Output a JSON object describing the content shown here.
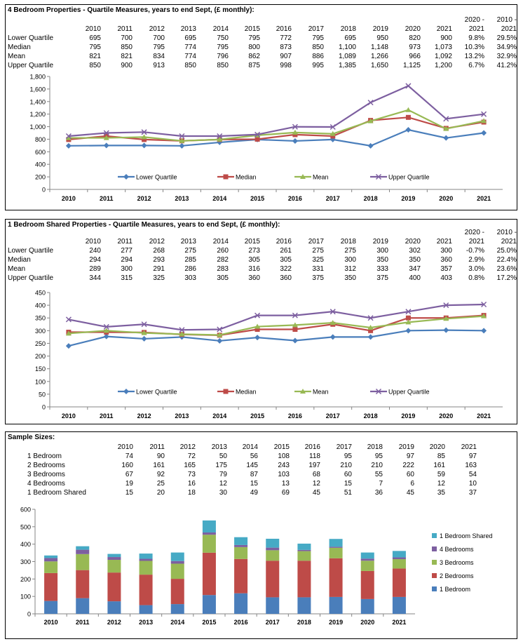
{
  "panels": [
    {
      "title": "4 Bedroom Properties - Quartile Measures, years to end Sept, (£ monthly):",
      "header_top": [
        "2020 -",
        "2010 -"
      ],
      "columns": [
        "2010",
        "2011",
        "2012",
        "2013",
        "2014",
        "2015",
        "2016",
        "2017",
        "2018",
        "2019",
        "2020",
        "2021",
        "2021",
        "2021"
      ],
      "rows": [
        {
          "label": "Lower Quartile",
          "cells": [
            "695",
            "700",
            "700",
            "695",
            "750",
            "795",
            "772",
            "795",
            "695",
            "950",
            "820",
            "900",
            "9.8%",
            "29.5%"
          ]
        },
        {
          "label": "Median",
          "cells": [
            "795",
            "850",
            "795",
            "774",
            "795",
            "800",
            "873",
            "850",
            "1,100",
            "1,148",
            "973",
            "1,073",
            "10.3%",
            "34.9%"
          ]
        },
        {
          "label": "Mean",
          "cells": [
            "821",
            "821",
            "834",
            "774",
            "796",
            "862",
            "907",
            "886",
            "1,089",
            "1,266",
            "966",
            "1,092",
            "13.2%",
            "32.9%"
          ]
        },
        {
          "label": "Upper Quartile",
          "cells": [
            "850",
            "900",
            "913",
            "850",
            "850",
            "875",
            "998",
            "995",
            "1,385",
            "1,650",
            "1,125",
            "1,200",
            "6.7%",
            "41.2%"
          ]
        }
      ]
    },
    {
      "title": "1 Bedroom Shared Properties - Quartile Measures, years to end Sept, (£ monthly):",
      "header_top": [
        "2020 -",
        "2010 -"
      ],
      "columns": [
        "2010",
        "2011",
        "2012",
        "2013",
        "2014",
        "2015",
        "2016",
        "2017",
        "2018",
        "2019",
        "2020",
        "2021",
        "2021",
        "2021"
      ],
      "rows": [
        {
          "label": "Lower Quartile",
          "cells": [
            "240",
            "277",
            "268",
            "275",
            "260",
            "273",
            "261",
            "275",
            "275",
            "300",
            "302",
            "300",
            "-0.7%",
            "25.0%"
          ]
        },
        {
          "label": "Median",
          "cells": [
            "294",
            "294",
            "293",
            "285",
            "282",
            "305",
            "305",
            "325",
            "300",
            "350",
            "350",
            "360",
            "2.9%",
            "22.4%"
          ]
        },
        {
          "label": "Mean",
          "cells": [
            "289",
            "300",
            "291",
            "286",
            "283",
            "316",
            "322",
            "331",
            "312",
            "333",
            "347",
            "357",
            "3.0%",
            "23.6%"
          ]
        },
        {
          "label": "Upper Quartile",
          "cells": [
            "344",
            "315",
            "325",
            "303",
            "305",
            "360",
            "360",
            "375",
            "350",
            "375",
            "400",
            "403",
            "0.8%",
            "17.2%"
          ]
        }
      ]
    },
    {
      "title": "Sample Sizes:",
      "columns": [
        "2010",
        "2011",
        "2012",
        "2013",
        "2014",
        "2015",
        "2016",
        "2017",
        "2018",
        "2019",
        "2020",
        "2021"
      ],
      "rows": [
        {
          "label": "1 Bedroom",
          "cells": [
            "74",
            "90",
            "72",
            "50",
            "56",
            "108",
            "118",
            "95",
            "95",
            "97",
            "85",
            "97"
          ]
        },
        {
          "label": "2 Bedrooms",
          "cells": [
            "160",
            "161",
            "165",
            "175",
            "145",
            "243",
            "197",
            "210",
            "210",
            "222",
            "161",
            "163"
          ]
        },
        {
          "label": "3 Bedrooms",
          "cells": [
            "67",
            "92",
            "73",
            "79",
            "87",
            "103",
            "68",
            "60",
            "55",
            "60",
            "59",
            "54"
          ]
        },
        {
          "label": "4 Bedrooms",
          "cells": [
            "19",
            "25",
            "16",
            "12",
            "15",
            "13",
            "12",
            "15",
            "7",
            "6",
            "12",
            "10"
          ]
        },
        {
          "label": "1 Bedroom Shared",
          "cells": [
            "15",
            "20",
            "18",
            "30",
            "49",
            "69",
            "45",
            "51",
            "36",
            "45",
            "35",
            "37"
          ]
        }
      ]
    }
  ],
  "chart_data": [
    {
      "type": "line",
      "categories": [
        "2010",
        "2011",
        "2012",
        "2013",
        "2014",
        "2015",
        "2016",
        "2017",
        "2018",
        "2019",
        "2020",
        "2021"
      ],
      "ylim": [
        0,
        1800
      ],
      "yticks": [
        "0",
        "200",
        "400",
        "600",
        "800",
        "1,000",
        "1,200",
        "1,400",
        "1,600",
        "1,800"
      ],
      "grid": false,
      "legend": "inside-bottom",
      "series": [
        {
          "name": "Lower Quartile",
          "color": "#4A7EBB",
          "marker": "diamond",
          "values": [
            695,
            700,
            700,
            695,
            750,
            795,
            772,
            795,
            695,
            950,
            820,
            900
          ]
        },
        {
          "name": "Median",
          "color": "#BE4B48",
          "marker": "square",
          "values": [
            795,
            850,
            795,
            774,
            795,
            800,
            873,
            850,
            1100,
            1148,
            973,
            1073
          ]
        },
        {
          "name": "Mean",
          "color": "#98B954",
          "marker": "triangle",
          "values": [
            821,
            821,
            834,
            774,
            796,
            862,
            907,
            886,
            1089,
            1266,
            966,
            1092
          ]
        },
        {
          "name": "Upper Quartile",
          "color": "#7D5FA0",
          "marker": "x",
          "values": [
            850,
            900,
            913,
            850,
            850,
            875,
            998,
            995,
            1385,
            1650,
            1125,
            1200
          ]
        }
      ]
    },
    {
      "type": "line",
      "categories": [
        "2010",
        "2011",
        "2012",
        "2013",
        "2014",
        "2015",
        "2016",
        "2017",
        "2018",
        "2019",
        "2020",
        "2021"
      ],
      "ylim": [
        0,
        450
      ],
      "yticks": [
        "0",
        "50",
        "100",
        "150",
        "200",
        "250",
        "300",
        "350",
        "400",
        "450"
      ],
      "grid": false,
      "legend": "inside-bottom",
      "series": [
        {
          "name": "Lower Quartile",
          "color": "#4A7EBB",
          "marker": "diamond",
          "values": [
            240,
            277,
            268,
            275,
            260,
            273,
            261,
            275,
            275,
            300,
            302,
            300
          ]
        },
        {
          "name": "Median",
          "color": "#BE4B48",
          "marker": "square",
          "values": [
            294,
            294,
            293,
            285,
            282,
            305,
            305,
            325,
            300,
            350,
            350,
            360
          ]
        },
        {
          "name": "Mean",
          "color": "#98B954",
          "marker": "triangle",
          "values": [
            289,
            300,
            291,
            286,
            283,
            316,
            322,
            331,
            312,
            333,
            347,
            357
          ]
        },
        {
          "name": "Upper Quartile",
          "color": "#7D5FA0",
          "marker": "x",
          "values": [
            344,
            315,
            325,
            303,
            305,
            360,
            360,
            375,
            350,
            375,
            400,
            403
          ]
        }
      ]
    },
    {
      "type": "bar",
      "stacked": true,
      "categories": [
        "2010",
        "2011",
        "2012",
        "2013",
        "2014",
        "2015",
        "2016",
        "2017",
        "2018",
        "2019",
        "2020",
        "2021"
      ],
      "ylim": [
        0,
        600
      ],
      "yticks": [
        "0",
        "100",
        "200",
        "300",
        "400",
        "500",
        "600"
      ],
      "grid": false,
      "legend": "right",
      "series": [
        {
          "name": "1 Bedroom",
          "color": "#4A7EBB",
          "values": [
            74,
            90,
            72,
            50,
            56,
            108,
            118,
            95,
            95,
            97,
            85,
            97
          ]
        },
        {
          "name": "2 Bedrooms",
          "color": "#BE4B48",
          "values": [
            160,
            161,
            165,
            175,
            145,
            243,
            197,
            210,
            210,
            222,
            161,
            163
          ]
        },
        {
          "name": "3 Bedrooms",
          "color": "#98B954",
          "values": [
            67,
            92,
            73,
            79,
            87,
            103,
            68,
            60,
            55,
            60,
            59,
            54
          ]
        },
        {
          "name": "4 Bedrooms",
          "color": "#7D5FA0",
          "values": [
            19,
            25,
            16,
            12,
            15,
            13,
            12,
            15,
            7,
            6,
            12,
            10
          ]
        },
        {
          "name": "1 Bedroom Shared",
          "color": "#46AAC5",
          "values": [
            15,
            20,
            18,
            30,
            49,
            69,
            45,
            51,
            36,
            45,
            35,
            37
          ]
        }
      ]
    }
  ]
}
